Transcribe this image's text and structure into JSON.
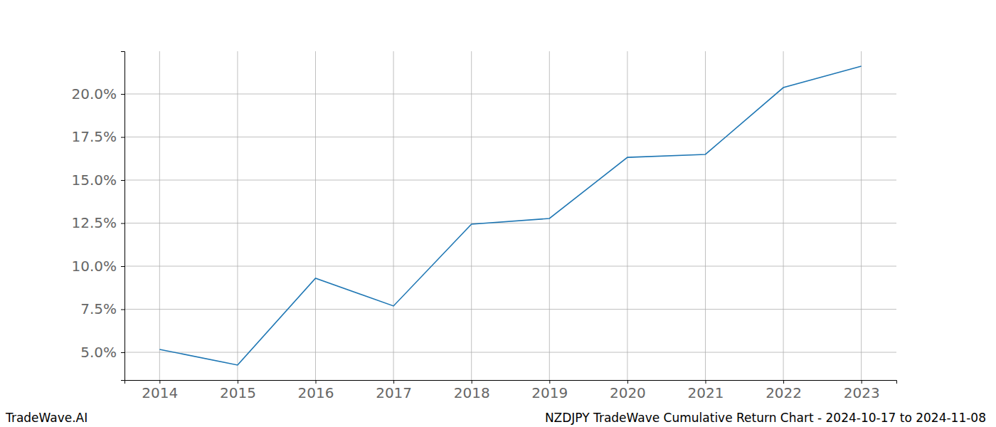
{
  "chart_data": {
    "type": "line",
    "title": "NZDJPY TradeWave Cumulative Return Chart - 2024-10-17 to 2024-11-08",
    "annotations": [
      "TradeWave.AI"
    ],
    "x": [
      2014,
      2015,
      2016,
      2017,
      2018,
      2019,
      2020,
      2021,
      2022,
      2023
    ],
    "series": [
      {
        "name": "NZDJPY",
        "color": "#1f77b4",
        "values": [
          5.17,
          4.26,
          9.3,
          7.69,
          12.44,
          12.77,
          16.32,
          16.49,
          20.37,
          21.61
        ]
      }
    ],
    "xlim": [
      2013.55,
      2023.45
    ],
    "xticks": [
      2014,
      2015,
      2016,
      2017,
      2018,
      2019,
      2020,
      2021,
      2022,
      2023
    ],
    "ylim": [
      3.39,
      22.48
    ],
    "yticks": [
      {
        "value": 5,
        "label": "5.0%"
      },
      {
        "value": 7.5,
        "label": "7.5%"
      },
      {
        "value": 10,
        "label": "10.0%"
      },
      {
        "value": 12.5,
        "label": "12.5%"
      },
      {
        "value": 15,
        "label": "15.0%"
      },
      {
        "value": 17.5,
        "label": "17.5%"
      },
      {
        "value": 20,
        "label": "20.0%"
      }
    ],
    "grid": true
  }
}
